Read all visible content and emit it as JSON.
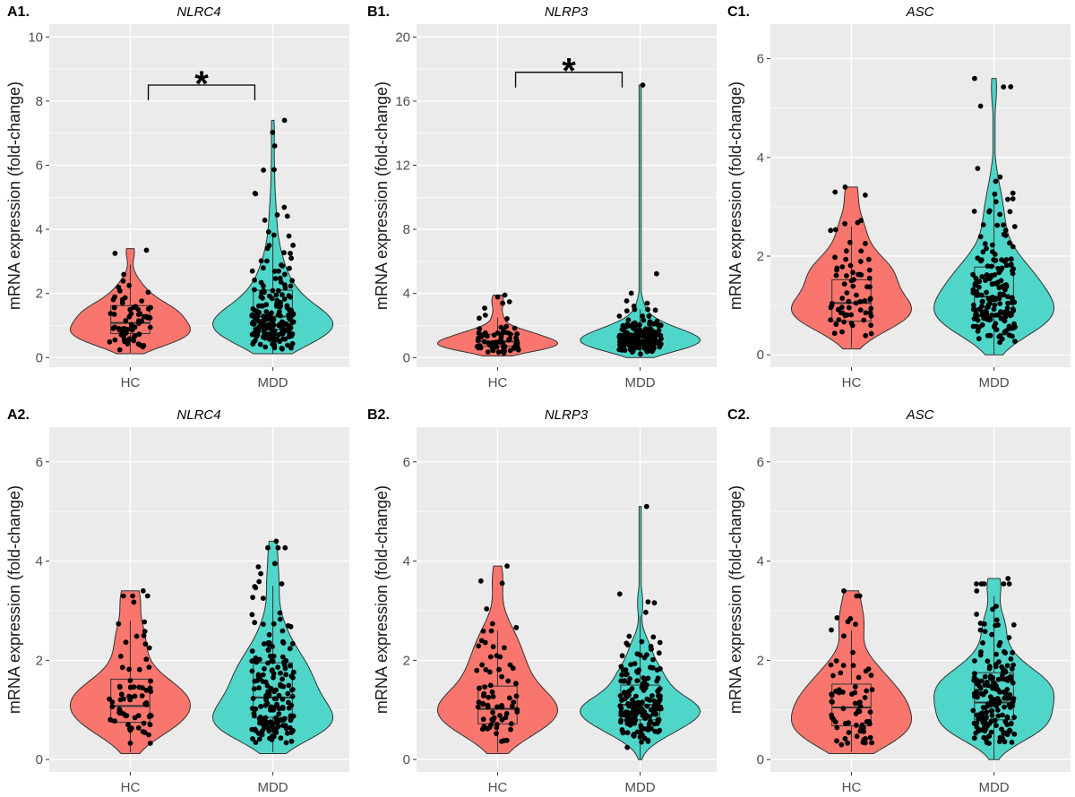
{
  "colors": {
    "HC": "#F8766D",
    "MDD": "#4FD6C9",
    "panel_bg": "#EBEBEB",
    "grid": "#FFFFFF",
    "points": "#000000",
    "outline": "#333333"
  },
  "chart_data": [
    {
      "type": "violin",
      "panel": "A1.",
      "title": "NLRC4",
      "ylabel": "mRNA expression (fold-change)",
      "categories": [
        "HC",
        "MDD"
      ],
      "ylim": [
        -0.3,
        10.4
      ],
      "yticks": [
        0,
        2,
        4,
        6,
        8,
        10
      ],
      "box": [
        {
          "group": "HC",
          "q1": 0.75,
          "median": 1.08,
          "q3": 1.62,
          "min": 0.15,
          "max": 2.9
        },
        {
          "group": "MDD",
          "q1": 0.88,
          "median": 1.28,
          "q3": 2.1,
          "min": 0.1,
          "max": 3.9
        }
      ],
      "violin_range": [
        {
          "group": "HC",
          "min": 0.12,
          "max": 3.4
        },
        {
          "group": "MDD",
          "min": 0.12,
          "max": 7.4
        }
      ],
      "n_points": [
        70,
        180
      ],
      "point_max": [
        3.35,
        7.4
      ],
      "significance": {
        "from": "HC",
        "to": "MDD",
        "y": 8.5,
        "label": "*"
      }
    },
    {
      "type": "violin",
      "panel": "B1.",
      "title": "NLRP3",
      "ylabel": "mRNA expression (fold-change)",
      "categories": [
        "HC",
        "MDD"
      ],
      "ylim": [
        -0.6,
        20.8
      ],
      "yticks": [
        0,
        4,
        8,
        12,
        16,
        20
      ],
      "box": [
        {
          "group": "HC",
          "q1": 0.7,
          "median": 1.0,
          "q3": 1.45,
          "min": 0.15,
          "max": 2.5
        },
        {
          "group": "MDD",
          "q1": 0.78,
          "median": 1.1,
          "q3": 1.5,
          "min": 0.05,
          "max": 3.0
        }
      ],
      "violin_range": [
        {
          "group": "HC",
          "min": 0.1,
          "max": 3.9
        },
        {
          "group": "MDD",
          "min": 0.0,
          "max": 17.0
        }
      ],
      "n_points": [
        70,
        180
      ],
      "point_max": [
        3.9,
        17.0
      ],
      "significance": {
        "from": "HC",
        "to": "MDD",
        "y": 17.8,
        "label": "*"
      }
    },
    {
      "type": "violin",
      "panel": "C1.",
      "title": "ASC",
      "ylabel": "mRNA expression (fold-change)",
      "categories": [
        "HC",
        "MDD"
      ],
      "ylim": [
        -0.25,
        6.7
      ],
      "yticks": [
        0,
        2,
        4,
        6
      ],
      "box": [
        {
          "group": "HC",
          "q1": 0.68,
          "median": 1.05,
          "q3": 1.52,
          "min": 0.15,
          "max": 2.6
        },
        {
          "group": "MDD",
          "q1": 0.78,
          "median": 1.18,
          "q3": 1.78,
          "min": 0.0,
          "max": 3.2
        }
      ],
      "violin_range": [
        {
          "group": "HC",
          "min": 0.12,
          "max": 3.4
        },
        {
          "group": "MDD",
          "min": 0.0,
          "max": 5.6
        }
      ],
      "n_points": [
        70,
        180
      ],
      "point_max": [
        3.4,
        5.6
      ],
      "significance": null
    },
    {
      "type": "violin",
      "panel": "A2.",
      "title": "NLRC4",
      "ylabel": "mRNA expression (fold-change)",
      "categories": [
        "HC",
        "MDD"
      ],
      "ylim": [
        -0.25,
        6.7
      ],
      "yticks": [
        0,
        2,
        4,
        6
      ],
      "box": [
        {
          "group": "HC",
          "q1": 0.75,
          "median": 1.08,
          "q3": 1.62,
          "min": 0.15,
          "max": 2.8
        },
        {
          "group": "MDD",
          "q1": 0.85,
          "median": 1.25,
          "q3": 1.95,
          "min": 0.15,
          "max": 3.5
        }
      ],
      "violin_range": [
        {
          "group": "HC",
          "min": 0.12,
          "max": 3.4
        },
        {
          "group": "MDD",
          "min": 0.12,
          "max": 4.4
        }
      ],
      "n_points": [
        70,
        180
      ],
      "point_max": [
        3.4,
        4.4
      ],
      "significance": null
    },
    {
      "type": "violin",
      "panel": "B2.",
      "title": "NLRP3",
      "ylabel": "mRNA expression (fold-change)",
      "categories": [
        "HC",
        "MDD"
      ],
      "ylim": [
        -0.25,
        6.7
      ],
      "yticks": [
        0,
        2,
        4,
        6
      ],
      "box": [
        {
          "group": "HC",
          "q1": 0.72,
          "median": 1.02,
          "q3": 1.48,
          "min": 0.15,
          "max": 2.6
        },
        {
          "group": "MDD",
          "q1": 0.8,
          "median": 1.1,
          "q3": 1.5,
          "min": 0.0,
          "max": 2.9
        }
      ],
      "violin_range": [
        {
          "group": "HC",
          "min": 0.12,
          "max": 3.9
        },
        {
          "group": "MDD",
          "min": 0.0,
          "max": 5.1
        }
      ],
      "n_points": [
        70,
        180
      ],
      "point_max": [
        3.9,
        5.1
      ],
      "significance": null
    },
    {
      "type": "violin",
      "panel": "C2.",
      "title": "ASC",
      "ylabel": "mRNA expression (fold-change)",
      "categories": [
        "HC",
        "MDD"
      ],
      "ylim": [
        -0.25,
        6.7
      ],
      "yticks": [
        0,
        2,
        4,
        6
      ],
      "box": [
        {
          "group": "HC",
          "q1": 0.68,
          "median": 1.05,
          "q3": 1.52,
          "min": 0.15,
          "max": 2.6
        },
        {
          "group": "MDD",
          "q1": 0.8,
          "median": 1.15,
          "q3": 1.75,
          "min": 0.0,
          "max": 3.3
        }
      ],
      "violin_range": [
        {
          "group": "HC",
          "min": 0.12,
          "max": 3.4
        },
        {
          "group": "MDD",
          "min": 0.0,
          "max": 3.65
        }
      ],
      "n_points": [
        70,
        180
      ],
      "point_max": [
        3.4,
        3.65
      ],
      "significance": null
    }
  ]
}
